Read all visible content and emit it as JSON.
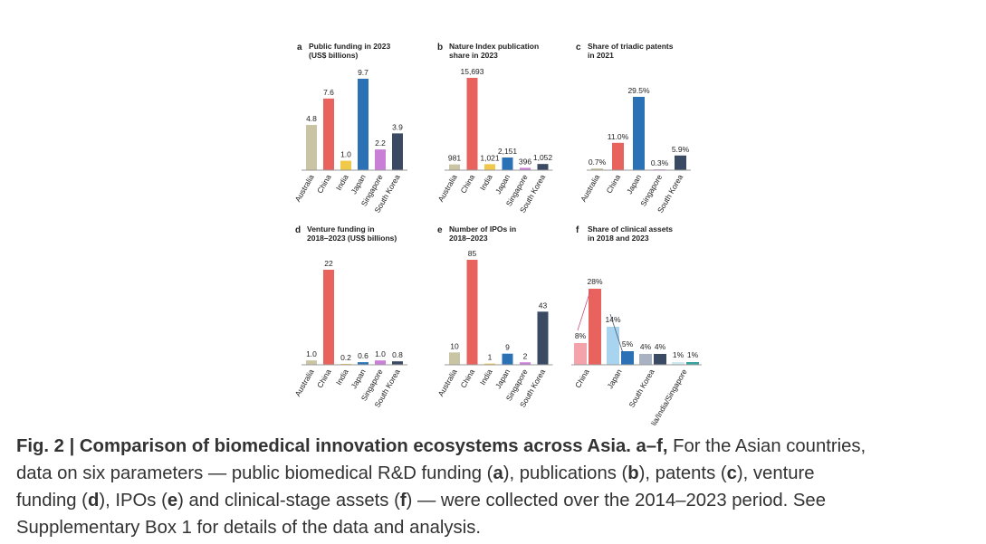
{
  "chart_data": [
    {
      "type": "bar",
      "panel": "a",
      "title": [
        "Public funding in 2023",
        "(US$ billions)"
      ],
      "categories": [
        "Australia",
        "China",
        "India",
        "Japan",
        "Singapore",
        "South Korea"
      ],
      "values": [
        4.8,
        7.6,
        1.0,
        9.7,
        2.2,
        3.9
      ],
      "value_labels": [
        "4.8",
        "7.6",
        "1.0",
        "9.7",
        "2.2",
        "3.9"
      ],
      "colors": [
        "#c9c4a4",
        "#e8625e",
        "#f0c94a",
        "#2a72b5",
        "#c97fd6",
        "#3a4a62"
      ]
    },
    {
      "type": "bar",
      "panel": "b",
      "title": [
        "Nature Index publication",
        "share in 2023"
      ],
      "categories": [
        "Australia",
        "China",
        "India",
        "Japan",
        "Singapore",
        "South Korea"
      ],
      "values": [
        981,
        15693,
        1021,
        2151,
        396,
        1052
      ],
      "value_labels": [
        "981",
        "15,693",
        "1,021",
        "2,151",
        "396",
        "1,052"
      ],
      "colors": [
        "#c9c4a4",
        "#e8625e",
        "#f0c94a",
        "#2a72b5",
        "#c97fd6",
        "#3a4a62"
      ]
    },
    {
      "type": "bar",
      "panel": "c",
      "title": [
        "Share of triadic patents",
        "in 2021"
      ],
      "categories": [
        "Australia",
        "China",
        "Japan",
        "Singapore",
        "South Korea"
      ],
      "values": [
        0.7,
        11.0,
        29.5,
        0.3,
        5.9
      ],
      "value_labels": [
        "0.7%",
        "11.0%",
        "29.5%",
        "0.3%",
        "5.9%"
      ],
      "colors": [
        "#c9c4a4",
        "#e8625e",
        "#2a72b5",
        "#c97fd6",
        "#3a4a62"
      ]
    },
    {
      "type": "bar",
      "panel": "d",
      "title": [
        "Venture funding in",
        "2018–2023 (US$ billions)"
      ],
      "categories": [
        "Australia",
        "China",
        "India",
        "Japan",
        "Singapore",
        "South Korea"
      ],
      "values": [
        1.0,
        22,
        0.2,
        0.6,
        1.0,
        0.8
      ],
      "value_labels": [
        "1.0",
        "22",
        "0.2",
        "0.6",
        "1.0",
        "0.8"
      ],
      "colors": [
        "#c9c4a4",
        "#e8625e",
        "#f0c94a",
        "#2a72b5",
        "#c97fd6",
        "#3a4a62"
      ]
    },
    {
      "type": "bar",
      "panel": "e",
      "title": [
        "Number of IPOs in",
        "2018–2023"
      ],
      "categories": [
        "Australia",
        "China",
        "India",
        "Japan",
        "Singapore",
        "South Korea"
      ],
      "values": [
        10,
        85,
        1,
        9,
        2,
        43
      ],
      "colors": [
        "#c9c4a4",
        "#e8625e",
        "#f0c94a",
        "#2a72b5",
        "#c97fd6",
        "#3a4a62"
      ]
    },
    {
      "type": "grouped_bar",
      "panel": "f",
      "title": [
        "Share of clinical assets",
        "in 2018 and 2023"
      ],
      "categories": [
        "China",
        "Japan",
        "South Korea",
        "Australia/India/Singapore"
      ],
      "series": [
        {
          "values": [
            8,
            14,
            4,
            1
          ],
          "value_labels": [
            "8%",
            "14%",
            "4%",
            "1%"
          ],
          "colors": [
            "#f4a3aa",
            "#a9d4ef",
            "#a9b2c0",
            "#cfe9ee"
          ]
        },
        {
          "values": [
            28,
            5,
            4,
            1
          ],
          "value_labels": [
            "28%",
            "5%",
            "4%",
            "1%"
          ],
          "colors": [
            "#e8625e",
            "#2a72b5",
            "#3a4a62",
            "#3aa3a0"
          ]
        }
      ]
    }
  ],
  "caption": {
    "lines": [
      [
        {
          "text": "Fig. 2 | Comparison of biomedical innovation ecosystems across Asia. a–f,",
          "bold": true
        },
        {
          "text": " For the Asian countries,",
          "bold": false
        }
      ],
      [
        {
          "text": "data on six parameters — public biomedical R&D funding (",
          "bold": false
        },
        {
          "text": "a",
          "bold": true
        },
        {
          "text": "), publications (",
          "bold": false
        },
        {
          "text": "b",
          "bold": true
        },
        {
          "text": "), patents (",
          "bold": false
        },
        {
          "text": "c",
          "bold": true
        },
        {
          "text": "), venture",
          "bold": false
        }
      ],
      [
        {
          "text": "funding (",
          "bold": false
        },
        {
          "text": "d",
          "bold": true
        },
        {
          "text": "), IPOs (",
          "bold": false
        },
        {
          "text": "e",
          "bold": true
        },
        {
          "text": ") and clinical-stage assets (",
          "bold": false
        },
        {
          "text": "f",
          "bold": true
        },
        {
          "text": ") — were collected over the 2014–2023 period. See",
          "bold": false
        }
      ],
      [
        {
          "text": "Supplementary Box 1 for details of the data and analysis.",
          "bold": false
        }
      ]
    ]
  }
}
